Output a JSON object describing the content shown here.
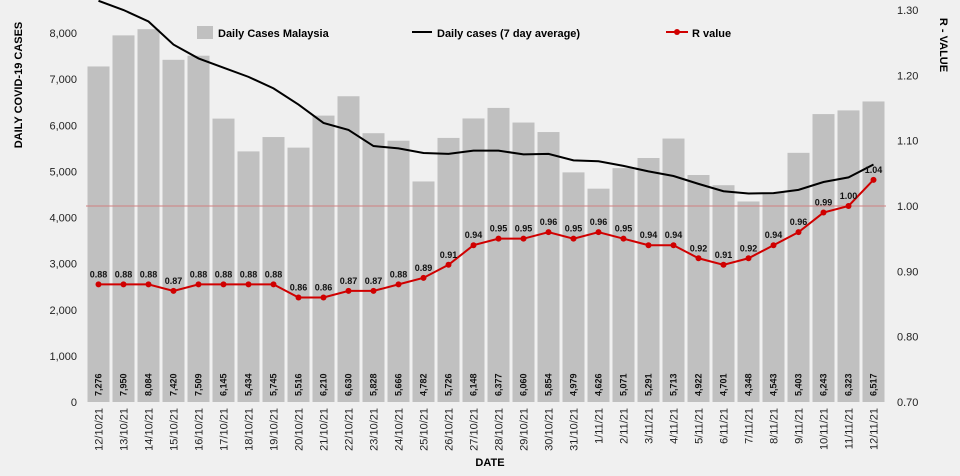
{
  "chart_data": {
    "type": "bar",
    "categories": [
      "12/10/21",
      "13/10/21",
      "14/10/21",
      "15/10/21",
      "16/10/21",
      "17/10/21",
      "18/10/21",
      "19/10/21",
      "20/10/21",
      "21/10/21",
      "22/10/21",
      "23/10/21",
      "24/10/21",
      "25/10/21",
      "26/10/21",
      "27/10/21",
      "28/10/21",
      "29/10/21",
      "30/10/21",
      "31/10/21",
      "1/11/21",
      "2/11/21",
      "3/11/21",
      "4/11/21",
      "5/11/21",
      "6/11/21",
      "7/11/21",
      "8/11/21",
      "9/11/21",
      "10/11/21",
      "11/11/21",
      "12/11/21"
    ],
    "series": [
      {
        "name": "Daily Cases Malaysia",
        "kind": "bar",
        "axis": "left",
        "color": "#c0c0c0",
        "values": [
          7276,
          7950,
          8084,
          7420,
          7509,
          6145,
          5434,
          5745,
          5516,
          6210,
          6630,
          5828,
          5666,
          4782,
          5726,
          6148,
          6377,
          6060,
          5854,
          4979,
          4626,
          5071,
          5291,
          5713,
          4922,
          4701,
          4348,
          4543,
          5403,
          6243,
          6323,
          6517
        ],
        "labels": [
          "7,276",
          "7,950",
          "8,084",
          "7,420",
          "7,509",
          "6,145",
          "5,434",
          "5,745",
          "5,516",
          "6,210",
          "6,630",
          "5,828",
          "5,666",
          "4,782",
          "5,726",
          "6,148",
          "6,377",
          "6,060",
          "5,854",
          "4,979",
          "4,626",
          "5,071",
          "5,291",
          "5,713",
          "4,922",
          "4,701",
          "4,348",
          "4,543",
          "5,403",
          "6,243",
          "6,323",
          "6,517"
        ]
      },
      {
        "name": "Daily cases (7 day average)",
        "kind": "line",
        "axis": "left",
        "color": "#000000",
        "values": [
          8700,
          8500,
          8250,
          7750,
          7450,
          7250,
          7050,
          6800,
          6450,
          6050,
          5900,
          5550,
          5500,
          5400,
          5380,
          5450,
          5450,
          5370,
          5380,
          5240,
          5220,
          5120,
          5000,
          4900,
          4730,
          4570,
          4520,
          4530,
          4600,
          4770,
          4870,
          5150
        ]
      },
      {
        "name": "R value",
        "kind": "line",
        "axis": "right",
        "color": "#d00000",
        "values": [
          0.88,
          0.88,
          0.88,
          0.87,
          0.88,
          0.88,
          0.88,
          0.88,
          0.86,
          0.86,
          0.87,
          0.87,
          0.88,
          0.89,
          0.91,
          0.94,
          0.95,
          0.95,
          0.96,
          0.95,
          0.96,
          0.95,
          0.94,
          0.94,
          0.92,
          0.91,
          0.92,
          0.94,
          0.96,
          0.99,
          1.0,
          1.04
        ],
        "labels": [
          "0.88",
          "0.88",
          "0.88",
          "0.87",
          "0.88",
          "0.88",
          "0.88",
          "0.88",
          "0.86",
          "0.86",
          "0.87",
          "0.87",
          "0.88",
          "0.89",
          "0.91",
          "0.94",
          "0.95",
          "0.95",
          "0.96",
          "0.95",
          "0.96",
          "0.95",
          "0.94",
          "0.94",
          "0.92",
          "0.91",
          "0.92",
          "0.94",
          "0.96",
          "0.99",
          "1.00",
          "1.04"
        ]
      }
    ],
    "xlabel": "DATE",
    "ylabel": "DAILY COVID-19 CASES",
    "ylabel_right": "R - VALUE",
    "ylim": [
      0,
      8500
    ],
    "ylim_right": [
      0.7,
      1.3
    ],
    "yticks": [
      "0",
      "1,000",
      "2,000",
      "3,000",
      "4,000",
      "5,000",
      "6,000",
      "7,000",
      "8,000"
    ],
    "yticks_values": [
      0,
      1000,
      2000,
      3000,
      4000,
      5000,
      6000,
      7000,
      8000
    ],
    "yticks_right": [
      "0.70",
      "0.80",
      "0.90",
      "1.00",
      "1.10",
      "1.20",
      "1.30"
    ],
    "yticks_right_values": [
      0.7,
      0.8,
      0.9,
      1.0,
      1.1,
      1.2,
      1.3
    ],
    "reference_line": {
      "axis": "right",
      "value": 1.0,
      "color": "#d08080"
    },
    "legend_position": "top",
    "grid": false
  }
}
